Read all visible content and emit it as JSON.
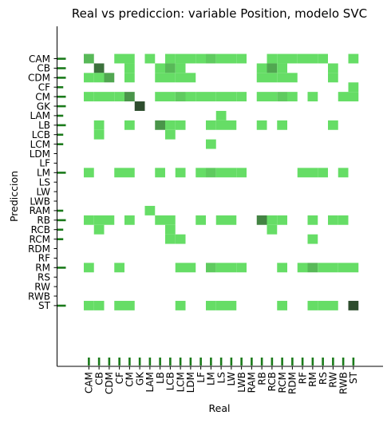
{
  "chart_data": {
    "type": "heatmap",
    "title": "Real vs prediccion: variable Position, modelo SVC",
    "xlabel": "Real",
    "ylabel": "Prediccion",
    "categories": [
      "CAM",
      "CB",
      "CDM",
      "CF",
      "CM",
      "GK",
      "LAM",
      "LB",
      "LCB",
      "LCM",
      "LDM",
      "LF",
      "LM",
      "LS",
      "LW",
      "LWB",
      "RAM",
      "RB",
      "RCB",
      "RCM",
      "RDM",
      "RF",
      "RM",
      "RS",
      "RW",
      "RWB",
      "ST"
    ],
    "marginal_x": [
      1,
      1,
      1,
      1,
      1,
      1,
      1,
      1,
      1,
      1,
      1,
      1,
      1,
      1,
      1,
      1,
      1,
      1,
      1,
      1,
      1,
      1,
      1,
      1,
      1,
      1,
      1
    ],
    "marginal_y": [
      1,
      1,
      1,
      0.5,
      1,
      1,
      0.5,
      1,
      0.5,
      0.5,
      0,
      0,
      1,
      0,
      0,
      0,
      0.5,
      1,
      0.5,
      0.5,
      0,
      0,
      1,
      0,
      0,
      0,
      1
    ],
    "cells": [
      {
        "pred": "CAM",
        "real": "CAM",
        "v": 2
      },
      {
        "pred": "CAM",
        "real": "CF",
        "v": 1
      },
      {
        "pred": "CAM",
        "real": "CM",
        "v": 1
      },
      {
        "pred": "CAM",
        "real": "LAM",
        "v": 1
      },
      {
        "pred": "CAM",
        "real": "LCB",
        "v": 1
      },
      {
        "pred": "CAM",
        "real": "LCM",
        "v": 1
      },
      {
        "pred": "CAM",
        "real": "LDM",
        "v": 1
      },
      {
        "pred": "CAM",
        "real": "LF",
        "v": 1
      },
      {
        "pred": "CAM",
        "real": "LM",
        "v": 1.5
      },
      {
        "pred": "CAM",
        "real": "LS",
        "v": 1
      },
      {
        "pred": "CAM",
        "real": "LW",
        "v": 1
      },
      {
        "pred": "CAM",
        "real": "LWB",
        "v": 1
      },
      {
        "pred": "CAM",
        "real": "RCB",
        "v": 1
      },
      {
        "pred": "CAM",
        "real": "RCM",
        "v": 1
      },
      {
        "pred": "CAM",
        "real": "RDM",
        "v": 1
      },
      {
        "pred": "CAM",
        "real": "RF",
        "v": 1
      },
      {
        "pred": "CAM",
        "real": "RM",
        "v": 1
      },
      {
        "pred": "CAM",
        "real": "RS",
        "v": 1
      },
      {
        "pred": "CAM",
        "real": "ST",
        "v": 1
      },
      {
        "pred": "CB",
        "real": "CB",
        "v": 4
      },
      {
        "pred": "CB",
        "real": "CM",
        "v": 1
      },
      {
        "pred": "CB",
        "real": "LB",
        "v": 1
      },
      {
        "pred": "CB",
        "real": "LCB",
        "v": 2
      },
      {
        "pred": "CB",
        "real": "LCM",
        "v": 1
      },
      {
        "pred": "CB",
        "real": "RB",
        "v": 1
      },
      {
        "pred": "CB",
        "real": "RCB",
        "v": 2.5
      },
      {
        "pred": "CB",
        "real": "RCM",
        "v": 1
      },
      {
        "pred": "CB",
        "real": "RW",
        "v": 1
      },
      {
        "pred": "CDM",
        "real": "CAM",
        "v": 1
      },
      {
        "pred": "CDM",
        "real": "CB",
        "v": 1
      },
      {
        "pred": "CDM",
        "real": "CDM",
        "v": 2.5
      },
      {
        "pred": "CDM",
        "real": "CM",
        "v": 1
      },
      {
        "pred": "CDM",
        "real": "LB",
        "v": 1
      },
      {
        "pred": "CDM",
        "real": "LCB",
        "v": 1
      },
      {
        "pred": "CDM",
        "real": "LCM",
        "v": 1
      },
      {
        "pred": "CDM",
        "real": "LDM",
        "v": 1
      },
      {
        "pred": "CDM",
        "real": "RB",
        "v": 1
      },
      {
        "pred": "CDM",
        "real": "RCB",
        "v": 1
      },
      {
        "pred": "CDM",
        "real": "RCM",
        "v": 1
      },
      {
        "pred": "CDM",
        "real": "RDM",
        "v": 1
      },
      {
        "pred": "CDM",
        "real": "RW",
        "v": 1
      },
      {
        "pred": "CF",
        "real": "ST",
        "v": 1
      },
      {
        "pred": "CM",
        "real": "CAM",
        "v": 1
      },
      {
        "pred": "CM",
        "real": "CB",
        "v": 1
      },
      {
        "pred": "CM",
        "real": "CDM",
        "v": 1
      },
      {
        "pred": "CM",
        "real": "CF",
        "v": 1
      },
      {
        "pred": "CM",
        "real": "CM",
        "v": 3
      },
      {
        "pred": "CM",
        "real": "LB",
        "v": 1
      },
      {
        "pred": "CM",
        "real": "LCB",
        "v": 1
      },
      {
        "pred": "CM",
        "real": "LCM",
        "v": 1.5
      },
      {
        "pred": "CM",
        "real": "LDM",
        "v": 1
      },
      {
        "pred": "CM",
        "real": "LF",
        "v": 1
      },
      {
        "pred": "CM",
        "real": "LM",
        "v": 1
      },
      {
        "pred": "CM",
        "real": "LS",
        "v": 1
      },
      {
        "pred": "CM",
        "real": "LW",
        "v": 1
      },
      {
        "pred": "CM",
        "real": "LWB",
        "v": 1
      },
      {
        "pred": "CM",
        "real": "RB",
        "v": 1
      },
      {
        "pred": "CM",
        "real": "RCB",
        "v": 1
      },
      {
        "pred": "CM",
        "real": "RCM",
        "v": 1.5
      },
      {
        "pred": "CM",
        "real": "RDM",
        "v": 1
      },
      {
        "pred": "CM",
        "real": "RM",
        "v": 1
      },
      {
        "pred": "CM",
        "real": "RWB",
        "v": 1
      },
      {
        "pred": "CM",
        "real": "ST",
        "v": 1
      },
      {
        "pred": "GK",
        "real": "GK",
        "v": 5
      },
      {
        "pred": "LAM",
        "real": "LS",
        "v": 1
      },
      {
        "pred": "LB",
        "real": "CB",
        "v": 1
      },
      {
        "pred": "LB",
        "real": "CM",
        "v": 1
      },
      {
        "pred": "LB",
        "real": "LB",
        "v": 3
      },
      {
        "pred": "LB",
        "real": "LCB",
        "v": 1
      },
      {
        "pred": "LB",
        "real": "LCM",
        "v": 1
      },
      {
        "pred": "LB",
        "real": "LM",
        "v": 1
      },
      {
        "pred": "LB",
        "real": "LS",
        "v": 1
      },
      {
        "pred": "LB",
        "real": "LW",
        "v": 1
      },
      {
        "pred": "LB",
        "real": "RB",
        "v": 1
      },
      {
        "pred": "LB",
        "real": "RCM",
        "v": 1
      },
      {
        "pred": "LB",
        "real": "RW",
        "v": 1
      },
      {
        "pred": "LCB",
        "real": "CB",
        "v": 1
      },
      {
        "pred": "LCB",
        "real": "LCB",
        "v": 1
      },
      {
        "pred": "LCM",
        "real": "LM",
        "v": 1
      },
      {
        "pred": "LM",
        "real": "CAM",
        "v": 1
      },
      {
        "pred": "LM",
        "real": "CF",
        "v": 1
      },
      {
        "pred": "LM",
        "real": "CM",
        "v": 1
      },
      {
        "pred": "LM",
        "real": "LB",
        "v": 1
      },
      {
        "pred": "LM",
        "real": "LCM",
        "v": 1
      },
      {
        "pred": "LM",
        "real": "LF",
        "v": 1
      },
      {
        "pred": "LM",
        "real": "LM",
        "v": 1.5
      },
      {
        "pred": "LM",
        "real": "LS",
        "v": 1
      },
      {
        "pred": "LM",
        "real": "LW",
        "v": 1
      },
      {
        "pred": "LM",
        "real": "LWB",
        "v": 1
      },
      {
        "pred": "LM",
        "real": "RF",
        "v": 1
      },
      {
        "pred": "LM",
        "real": "RM",
        "v": 1
      },
      {
        "pred": "LM",
        "real": "RS",
        "v": 1
      },
      {
        "pred": "LM",
        "real": "RWB",
        "v": 1
      },
      {
        "pred": "RAM",
        "real": "LAM",
        "v": 1
      },
      {
        "pred": "RB",
        "real": "CAM",
        "v": 1
      },
      {
        "pred": "RB",
        "real": "CB",
        "v": 1
      },
      {
        "pred": "RB",
        "real": "CDM",
        "v": 1
      },
      {
        "pred": "RB",
        "real": "CM",
        "v": 1
      },
      {
        "pred": "RB",
        "real": "LB",
        "v": 1
      },
      {
        "pred": "RB",
        "real": "LCB",
        "v": 1
      },
      {
        "pred": "RB",
        "real": "LF",
        "v": 1
      },
      {
        "pred": "RB",
        "real": "LS",
        "v": 1
      },
      {
        "pred": "RB",
        "real": "LW",
        "v": 1
      },
      {
        "pred": "RB",
        "real": "RB",
        "v": 3.5
      },
      {
        "pred": "RB",
        "real": "RCB",
        "v": 1
      },
      {
        "pred": "RB",
        "real": "RCM",
        "v": 1
      },
      {
        "pred": "RB",
        "real": "RM",
        "v": 1
      },
      {
        "pred": "RB",
        "real": "RW",
        "v": 1
      },
      {
        "pred": "RB",
        "real": "RWB",
        "v": 1
      },
      {
        "pred": "RCB",
        "real": "CB",
        "v": 1
      },
      {
        "pred": "RCB",
        "real": "LCB",
        "v": 1
      },
      {
        "pred": "RCB",
        "real": "RCB",
        "v": 1
      },
      {
        "pred": "RCM",
        "real": "LCB",
        "v": 1
      },
      {
        "pred": "RCM",
        "real": "LCM",
        "v": 1
      },
      {
        "pred": "RCM",
        "real": "RM",
        "v": 1
      },
      {
        "pred": "RM",
        "real": "CAM",
        "v": 1
      },
      {
        "pred": "RM",
        "real": "CF",
        "v": 1
      },
      {
        "pred": "RM",
        "real": "LCM",
        "v": 1
      },
      {
        "pred": "RM",
        "real": "LDM",
        "v": 1
      },
      {
        "pred": "RM",
        "real": "LM",
        "v": 1.5
      },
      {
        "pred": "RM",
        "real": "LS",
        "v": 1
      },
      {
        "pred": "RM",
        "real": "LW",
        "v": 1
      },
      {
        "pred": "RM",
        "real": "LWB",
        "v": 1
      },
      {
        "pred": "RM",
        "real": "RCM",
        "v": 1
      },
      {
        "pred": "RM",
        "real": "RF",
        "v": 1
      },
      {
        "pred": "RM",
        "real": "RM",
        "v": 2
      },
      {
        "pred": "RM",
        "real": "RS",
        "v": 1
      },
      {
        "pred": "RM",
        "real": "RW",
        "v": 1
      },
      {
        "pred": "RM",
        "real": "RWB",
        "v": 1
      },
      {
        "pred": "RM",
        "real": "ST",
        "v": 1
      },
      {
        "pred": "ST",
        "real": "CAM",
        "v": 1
      },
      {
        "pred": "ST",
        "real": "CB",
        "v": 1
      },
      {
        "pred": "ST",
        "real": "CF",
        "v": 1
      },
      {
        "pred": "ST",
        "real": "CM",
        "v": 1
      },
      {
        "pred": "ST",
        "real": "LCM",
        "v": 1
      },
      {
        "pred": "ST",
        "real": "LM",
        "v": 1
      },
      {
        "pred": "ST",
        "real": "LS",
        "v": 1
      },
      {
        "pred": "ST",
        "real": "LW",
        "v": 1
      },
      {
        "pred": "ST",
        "real": "RCM",
        "v": 1
      },
      {
        "pred": "ST",
        "real": "RM",
        "v": 1
      },
      {
        "pred": "ST",
        "real": "RS",
        "v": 1
      },
      {
        "pred": "ST",
        "real": "RW",
        "v": 1
      },
      {
        "pred": "ST",
        "real": "ST",
        "v": 5
      }
    ],
    "colors": {
      "low": "#66dd66",
      "high": "#2e4d2e",
      "marginal": "#1a7a1a"
    },
    "grid": false,
    "legend": "none"
  }
}
